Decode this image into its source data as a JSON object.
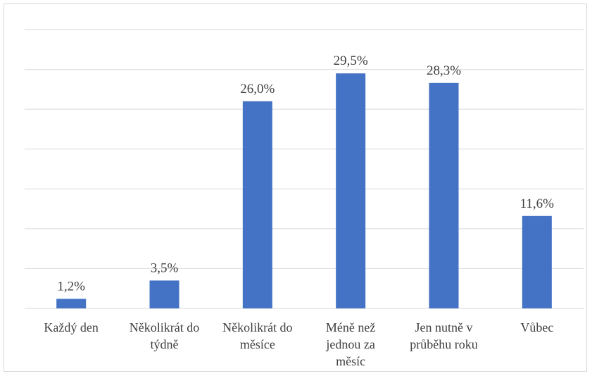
{
  "chart_data": {
    "type": "bar",
    "categories": [
      [
        "Každý den"
      ],
      [
        "Několikrát do",
        "týdně"
      ],
      [
        "Několikrát do",
        "měsíce"
      ],
      [
        "Méně než",
        "jednou za",
        "měsíc"
      ],
      [
        "Jen nutně v",
        "průběhu roku"
      ],
      [
        "Vůbec"
      ]
    ],
    "values": [
      1.2,
      3.5,
      26.0,
      29.5,
      28.3,
      11.6
    ],
    "data_labels": [
      "1,2%",
      "3,5%",
      "26,0%",
      "29,5%",
      "28,3%",
      "11,6%"
    ],
    "title": "",
    "xlabel": "",
    "ylabel": "",
    "ylim": [
      0,
      35
    ],
    "grid": true,
    "legend": "none",
    "colors": {
      "bar": "#4472c4",
      "grid": "#d9d9d9",
      "text": "#404040"
    }
  }
}
